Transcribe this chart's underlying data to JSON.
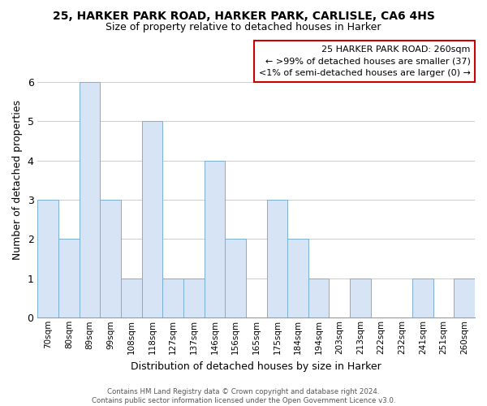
{
  "title": "25, HARKER PARK ROAD, HARKER PARK, CARLISLE, CA6 4HS",
  "subtitle": "Size of property relative to detached houses in Harker",
  "xlabel": "Distribution of detached houses by size in Harker",
  "ylabel": "Number of detached properties",
  "bar_labels": [
    "70sqm",
    "80sqm",
    "89sqm",
    "99sqm",
    "108sqm",
    "118sqm",
    "127sqm",
    "137sqm",
    "146sqm",
    "156sqm",
    "165sqm",
    "175sqm",
    "184sqm",
    "194sqm",
    "203sqm",
    "213sqm",
    "222sqm",
    "232sqm",
    "241sqm",
    "251sqm",
    "260sqm"
  ],
  "bar_values": [
    3,
    2,
    6,
    3,
    1,
    5,
    1,
    1,
    4,
    2,
    0,
    3,
    2,
    1,
    0,
    1,
    0,
    0,
    1,
    0,
    1
  ],
  "bar_color": "#d6e4f5",
  "bar_edge_color": "#7bafd4",
  "ylim": [
    0,
    7
  ],
  "yticks": [
    0,
    1,
    2,
    3,
    4,
    5,
    6,
    7
  ],
  "grid_color": "#cccccc",
  "background_color": "#ffffff",
  "legend_title": "25 HARKER PARK ROAD: 260sqm",
  "legend_line1": "← >99% of detached houses are smaller (37)",
  "legend_line2": "<1% of semi-detached houses are larger (0) →",
  "legend_box_edge_color": "#cc0000",
  "footer_line1": "Contains HM Land Registry data © Crown copyright and database right 2024.",
  "footer_line2": "Contains public sector information licensed under the Open Government Licence v3.0."
}
